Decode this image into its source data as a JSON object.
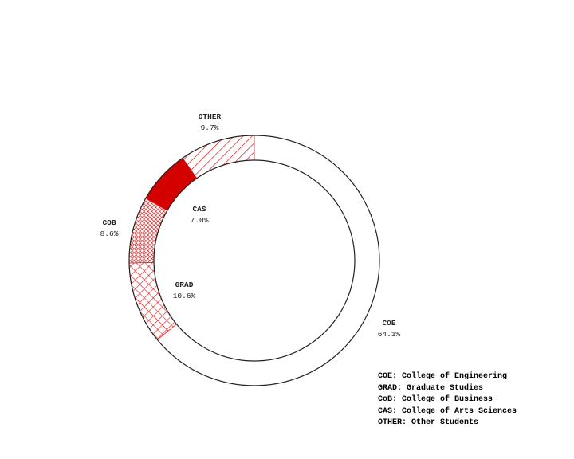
{
  "chart_data": {
    "type": "pie",
    "style": "donut",
    "start": "top, clockwise",
    "slices": [
      {
        "label": "COE",
        "value": 64.1,
        "pct_label": "64.1%",
        "fill": "none",
        "color": "#ffffff"
      },
      {
        "label": "GRAD",
        "value": 10.6,
        "pct_label": "10.6%",
        "fill": "crosshatch",
        "color": "#d40000"
      },
      {
        "label": "COB",
        "value": 8.6,
        "pct_label": "8.6%",
        "fill": "dense-crosshatch",
        "color": "#d40000"
      },
      {
        "label": "CAS",
        "value": 7.0,
        "pct_label": "7.0%",
        "fill": "solid",
        "color": "#d40000"
      },
      {
        "label": "OTHER",
        "value": 9.7,
        "pct_label": "9.7%",
        "fill": "diagonal",
        "color": "#d40000"
      }
    ],
    "legend": [
      "COE: College of Engineering",
      "GRAD: Graduate Studies",
      "CoB: College of Business",
      "CAS: College of Arts Sciences",
      "OTHER: Other Students"
    ],
    "legend_position": "bottom-right"
  }
}
